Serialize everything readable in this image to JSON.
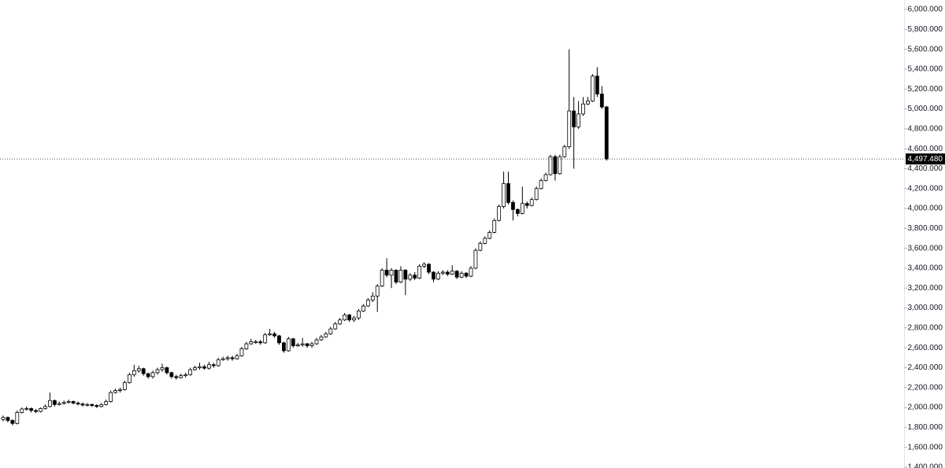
{
  "chart_data": {
    "type": "candlestick",
    "up_color": "#ffffff",
    "down_color": "#000000",
    "wick_color": "#000000",
    "ylim": [
      1392,
      6095
    ],
    "yticks": [
      {
        "value": 1400,
        "label": "1,400.000"
      },
      {
        "value": 1600,
        "label": "1,600.000"
      },
      {
        "value": 1800,
        "label": "1,800.000"
      },
      {
        "value": 2000,
        "label": "2,000.000"
      },
      {
        "value": 2200,
        "label": "2,200.000"
      },
      {
        "value": 2400,
        "label": "2,400.000"
      },
      {
        "value": 2600,
        "label": "2,600.000"
      },
      {
        "value": 2800,
        "label": "2,800.000"
      },
      {
        "value": 3000,
        "label": "3,000.000"
      },
      {
        "value": 3200,
        "label": "3,200.000"
      },
      {
        "value": 3400,
        "label": "3,400.000"
      },
      {
        "value": 3600,
        "label": "3,600.000"
      },
      {
        "value": 3800,
        "label": "3,800.000"
      },
      {
        "value": 4000,
        "label": "4,000.000"
      },
      {
        "value": 4200,
        "label": "4,200.000"
      },
      {
        "value": 4400,
        "label": "4,400.000"
      },
      {
        "value": 4600,
        "label": "4,600.000"
      },
      {
        "value": 4800,
        "label": "4,800.000"
      },
      {
        "value": 5000,
        "label": "5,000.000"
      },
      {
        "value": 5200,
        "label": "5,200.000"
      },
      {
        "value": 5400,
        "label": "5,400.000"
      },
      {
        "value": 5600,
        "label": "5,600.000"
      },
      {
        "value": 5800,
        "label": "5,800.000"
      },
      {
        "value": 6000,
        "label": "6,000.000"
      }
    ],
    "last_price": {
      "value": 4497.48,
      "label": "4,497.480"
    },
    "open": [
      1880,
      1900,
      1870,
      1840,
      1950,
      1985,
      1990,
      1970,
      1960,
      1990,
      2010,
      2070,
      2030,
      2040,
      2050,
      2060,
      2045,
      2035,
      2025,
      2030,
      2020,
      2010,
      2030,
      2060,
      2150,
      2170,
      2180,
      2250,
      2330,
      2370,
      2390,
      2340,
      2310,
      2350,
      2380,
      2400,
      2350,
      2310,
      2300,
      2320,
      2330,
      2380,
      2400,
      2410,
      2395,
      2430,
      2420,
      2480,
      2490,
      2500,
      2490,
      2520,
      2590,
      2640,
      2660,
      2660,
      2650,
      2730,
      2740,
      2720,
      2650,
      2570,
      2690,
      2620,
      2630,
      2640,
      2620,
      2640,
      2680,
      2710,
      2740,
      2790,
      2840,
      2880,
      2930,
      2880,
      2900,
      2970,
      3020,
      3080,
      3120,
      3220,
      3380,
      3330,
      3380,
      3260,
      3380,
      3290,
      3330,
      3300,
      3420,
      3440,
      3360,
      3290,
      3350,
      3360,
      3340,
      3370,
      3310,
      3350,
      3320,
      3400,
      3580,
      3650,
      3700,
      3760,
      3880,
      4020,
      4250,
      4060,
      3990,
      3950,
      4050,
      4030,
      4090,
      4200,
      4280,
      4340,
      4520,
      4350,
      4520,
      4620,
      4980,
      4820,
      4950,
      5050,
      5080,
      5330,
      5150,
      5020
    ],
    "high": [
      1920,
      1910,
      1880,
      1970,
      2000,
      2010,
      2000,
      1985,
      2000,
      2030,
      2150,
      2080,
      2060,
      2070,
      2080,
      2070,
      2060,
      2050,
      2045,
      2040,
      2035,
      2045,
      2080,
      2170,
      2190,
      2200,
      2270,
      2350,
      2430,
      2420,
      2400,
      2350,
      2370,
      2400,
      2440,
      2410,
      2360,
      2330,
      2340,
      2350,
      2400,
      2420,
      2450,
      2430,
      2460,
      2450,
      2500,
      2510,
      2520,
      2520,
      2540,
      2610,
      2660,
      2690,
      2680,
      2680,
      2750,
      2790,
      2760,
      2730,
      2660,
      2710,
      2700,
      2650,
      2700,
      2650,
      2660,
      2700,
      2730,
      2760,
      2810,
      2860,
      2900,
      2950,
      2940,
      2920,
      2990,
      3040,
      3100,
      3160,
      3240,
      3400,
      3500,
      3400,
      3390,
      3420,
      3390,
      3350,
      3360,
      3440,
      3460,
      3450,
      3370,
      3370,
      3380,
      3380,
      3430,
      3380,
      3370,
      3360,
      3420,
      3600,
      3670,
      3720,
      3780,
      3900,
      4040,
      4370,
      4370,
      4080,
      4000,
      4220,
      4070,
      4110,
      4220,
      4300,
      4360,
      4540,
      4540,
      4540,
      4640,
      5600,
      5120,
      5080,
      5120,
      5120,
      5350,
      5420,
      5230,
      5030
    ],
    "low": [
      1860,
      1850,
      1820,
      1830,
      1940,
      1970,
      1950,
      1945,
      1950,
      1980,
      2000,
      2010,
      2020,
      2030,
      2040,
      2030,
      2020,
      2010,
      2010,
      2005,
      1995,
      2000,
      2020,
      2050,
      2140,
      2150,
      2170,
      2240,
      2310,
      2350,
      2320,
      2290,
      2290,
      2330,
      2360,
      2330,
      2290,
      2280,
      2290,
      2300,
      2320,
      2370,
      2380,
      2380,
      2380,
      2400,
      2410,
      2470,
      2470,
      2470,
      2480,
      2510,
      2580,
      2630,
      2640,
      2630,
      2640,
      2720,
      2700,
      2630,
      2550,
      2560,
      2600,
      2610,
      2610,
      2600,
      2600,
      2630,
      2670,
      2700,
      2730,
      2780,
      2830,
      2870,
      2860,
      2860,
      2880,
      2960,
      3010,
      3060,
      2960,
      3210,
      3310,
      3200,
      3240,
      3250,
      3130,
      3270,
      3280,
      3290,
      3400,
      3340,
      3260,
      3280,
      3330,
      3320,
      3330,
      3290,
      3300,
      3300,
      3310,
      3390,
      3570,
      3640,
      3690,
      3750,
      3870,
      4000,
      4040,
      3880,
      3920,
      3940,
      4000,
      4020,
      4080,
      4190,
      4270,
      4330,
      4280,
      4340,
      4510,
      4600,
      4400,
      4800,
      4930,
      5040,
      5070,
      5120,
      5000,
      4480
    ],
    "close": [
      1900,
      1870,
      1840,
      1950,
      1985,
      1990,
      1970,
      1960,
      1990,
      2010,
      2070,
      2030,
      2040,
      2050,
      2060,
      2045,
      2035,
      2025,
      2030,
      2020,
      2010,
      2030,
      2060,
      2150,
      2170,
      2180,
      2250,
      2330,
      2370,
      2390,
      2340,
      2310,
      2350,
      2380,
      2400,
      2350,
      2310,
      2300,
      2320,
      2330,
      2380,
      2400,
      2410,
      2395,
      2430,
      2420,
      2480,
      2490,
      2500,
      2490,
      2520,
      2590,
      2640,
      2660,
      2660,
      2650,
      2730,
      2740,
      2720,
      2650,
      2570,
      2690,
      2620,
      2630,
      2640,
      2620,
      2640,
      2680,
      2710,
      2740,
      2790,
      2840,
      2880,
      2930,
      2880,
      2900,
      2970,
      3020,
      3080,
      3120,
      3220,
      3380,
      3330,
      3380,
      3260,
      3380,
      3290,
      3330,
      3300,
      3420,
      3440,
      3360,
      3290,
      3350,
      3360,
      3340,
      3370,
      3310,
      3350,
      3320,
      3400,
      3580,
      3650,
      3700,
      3760,
      3880,
      4020,
      4250,
      4060,
      3990,
      3950,
      4050,
      4030,
      4090,
      4200,
      4280,
      4340,
      4520,
      4350,
      4520,
      4620,
      4980,
      4820,
      4950,
      5050,
      5080,
      5330,
      5150,
      5020,
      4497.48
    ]
  }
}
